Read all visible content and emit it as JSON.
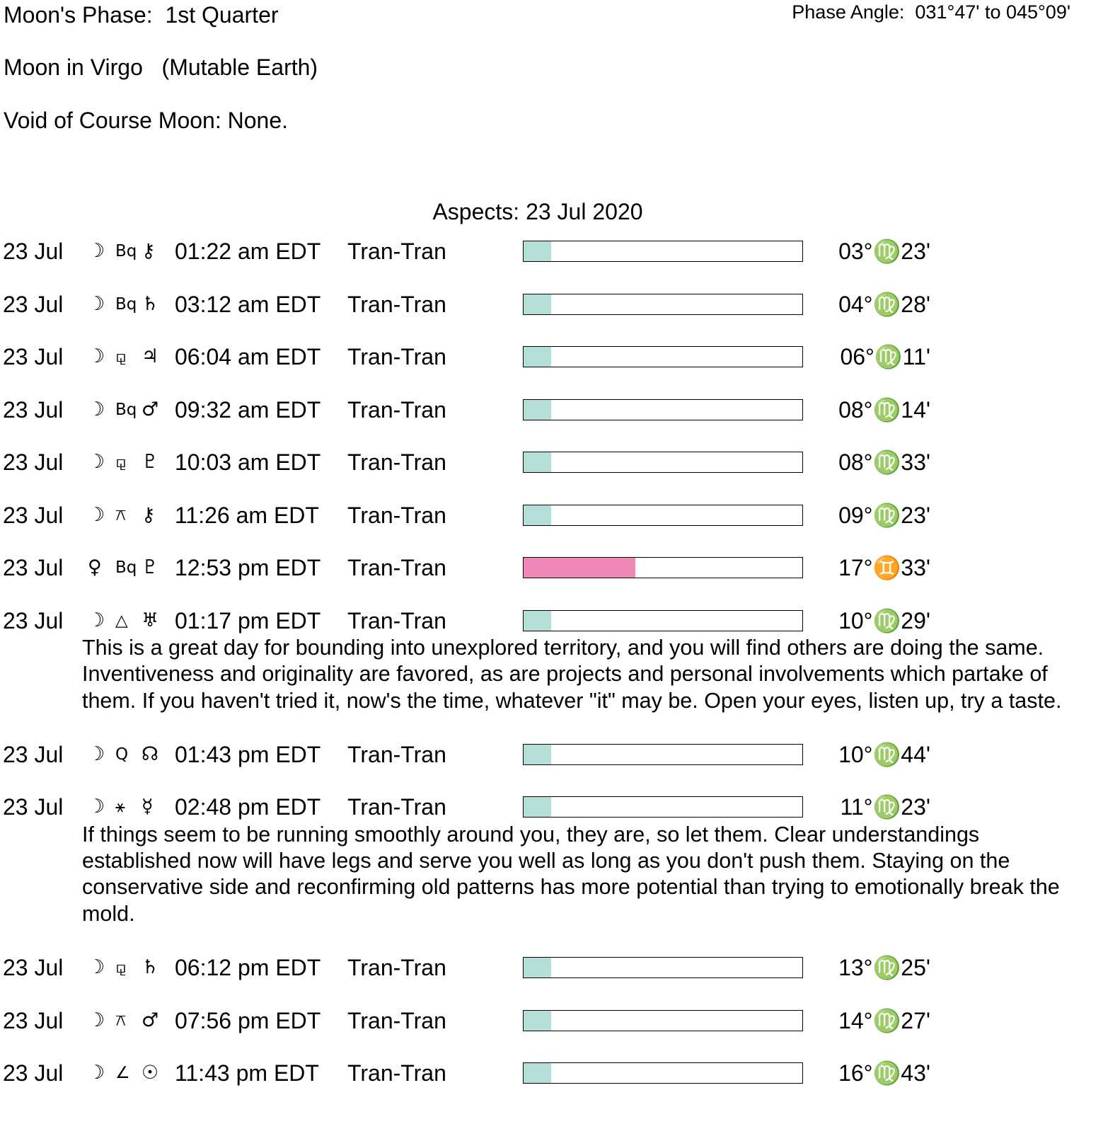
{
  "header": {
    "phase": "Moon's Phase:  1st Quarter",
    "phase_angle": "Phase Angle:  031°47' to 045°09'",
    "moon_sign": "Moon in Virgo   (Mutable Earth)",
    "void_of_course": "Void of Course Moon: None."
  },
  "aspects_title": "Aspects: 23 Jul 2020",
  "colors": {
    "moon_fill": "#b4dfd9",
    "venus_fill": "#ee88b8"
  },
  "aspects": [
    {
      "date": "23 Jul",
      "p1": "☽",
      "aspect": "Bq",
      "p2": "⚷",
      "time": "01:22 am EDT",
      "type": "Tran-Tran",
      "strength": 0.1,
      "color": "#b4dfd9",
      "position": "03°♍23'"
    },
    {
      "date": "23 Jul",
      "p1": "☽",
      "aspect": "Bq",
      "p2": "♄",
      "time": "03:12 am EDT",
      "type": "Tran-Tran",
      "strength": 0.1,
      "color": "#b4dfd9",
      "position": "04°♍28'"
    },
    {
      "date": "23 Jul",
      "p1": "☽",
      "aspect": "⚼",
      "p2": "♃",
      "time": "06:04 am EDT",
      "type": "Tran-Tran",
      "strength": 0.1,
      "color": "#b4dfd9",
      "position": "06°♍11'"
    },
    {
      "date": "23 Jul",
      "p1": "☽",
      "aspect": "Bq",
      "p2": "♂",
      "time": "09:32 am EDT",
      "type": "Tran-Tran",
      "strength": 0.1,
      "color": "#b4dfd9",
      "position": "08°♍14'"
    },
    {
      "date": "23 Jul",
      "p1": "☽",
      "aspect": "⚼",
      "p2": "♇",
      "time": "10:03 am EDT",
      "type": "Tran-Tran",
      "strength": 0.1,
      "color": "#b4dfd9",
      "position": "08°♍33'"
    },
    {
      "date": "23 Jul",
      "p1": "☽",
      "aspect": "⚻",
      "p2": "⚷",
      "time": "11:26 am EDT",
      "type": "Tran-Tran",
      "strength": 0.1,
      "color": "#b4dfd9",
      "position": "09°♍23'"
    },
    {
      "date": "23 Jul",
      "p1": "♀",
      "aspect": "Bq",
      "p2": "♇",
      "time": "12:53 pm EDT",
      "type": "Tran-Tran",
      "strength": 0.4,
      "color": "#ee88b8",
      "position": "17°♊33'"
    },
    {
      "date": "23 Jul",
      "p1": "☽",
      "aspect": "△",
      "p2": "♅",
      "time": "01:17 pm EDT",
      "type": "Tran-Tran",
      "strength": 0.1,
      "color": "#b4dfd9",
      "position": "10°♍29'",
      "description": "This is a great day for bounding into unexplored territory, and you will find others are doing the same. Inventiveness and originality are favored, as are projects and personal involvements which partake of them. If you haven't tried it, now's the time, whatever \"it\" may be. Open your eyes, listen up, try a taste."
    },
    {
      "date": "23 Jul",
      "p1": "☽",
      "aspect": "Q",
      "p2": "☊",
      "time": "01:43 pm EDT",
      "type": "Tran-Tran",
      "strength": 0.1,
      "color": "#b4dfd9",
      "position": "10°♍44'"
    },
    {
      "date": "23 Jul",
      "p1": "☽",
      "aspect": "⚹",
      "p2": "☿",
      "time": "02:48 pm EDT",
      "type": "Tran-Tran",
      "strength": 0.1,
      "color": "#b4dfd9",
      "position": "11°♍23'",
      "description": "If things seem to be running smoothly around you, they are, so let them. Clear understandings established now will have legs and serve you well as long as you don't push them. Staying on the conservative side and reconfirming old patterns has more potential than trying to emotionally break the mold."
    },
    {
      "date": "23 Jul",
      "p1": "☽",
      "aspect": "⚼",
      "p2": "♄",
      "time": "06:12 pm EDT",
      "type": "Tran-Tran",
      "strength": 0.1,
      "color": "#b4dfd9",
      "position": "13°♍25'"
    },
    {
      "date": "23 Jul",
      "p1": "☽",
      "aspect": "⚻",
      "p2": "♂",
      "time": "07:56 pm EDT",
      "type": "Tran-Tran",
      "strength": 0.1,
      "color": "#b4dfd9",
      "position": "14°♍27'"
    },
    {
      "date": "23 Jul",
      "p1": "☽",
      "aspect": "∠",
      "p2": "☉",
      "time": "11:43 pm EDT",
      "type": "Tran-Tran",
      "strength": 0.1,
      "color": "#b4dfd9",
      "position": "16°♍43'"
    }
  ]
}
